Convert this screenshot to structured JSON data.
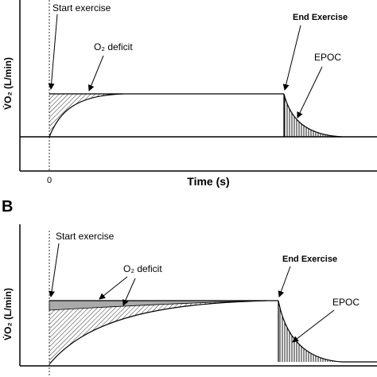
{
  "panels": [
    {
      "start_label": "Start exercise",
      "deficit_label": "O₂ deficit",
      "end_label": "End Exercise",
      "epoc_label": "EPOC",
      "y_axis_label": "V̇O₂ (L/min)",
      "x_tick": "0",
      "x_axis_label": "Time (s)"
    },
    {
      "panel_label": "B",
      "start_label": "Start exercise",
      "deficit_label": "O₂ deficit",
      "end_label": "End Exercise",
      "epoc_label": "EPOC",
      "y_axis_label": "V̇O₂ (L/min)"
    }
  ]
}
